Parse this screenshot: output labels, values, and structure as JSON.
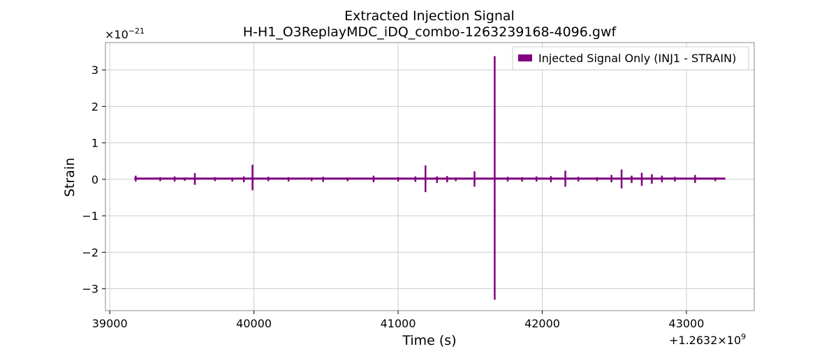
{
  "chart_data": {
    "type": "line",
    "title": "Extracted Injection Signal",
    "subtitle": "H-H1_O3ReplayMDC_iDQ_combo-1263239168-4096.gwf",
    "xlabel": "Time (s)",
    "ylabel": "Strain",
    "x_offset_text": "+1.2632×10",
    "x_offset_exponent": "9",
    "y_scale_text": "×10",
    "y_scale_exponent": "−21",
    "xlim": [
      38970,
      43470
    ],
    "ylim": [
      -3.6,
      3.75
    ],
    "x_ticks": [
      39000,
      40000,
      41000,
      42000,
      43000
    ],
    "x_tick_labels": [
      "39000",
      "40000",
      "41000",
      "42000",
      "43000"
    ],
    "y_ticks": [
      -3,
      -2,
      -1,
      0,
      1,
      2,
      3
    ],
    "y_tick_labels": [
      "−3",
      "−2",
      "−1",
      "0",
      "1",
      "2",
      "3"
    ],
    "grid": true,
    "legend": {
      "position": "top-right",
      "entries": [
        "Injected Signal Only (INJ1 - STRAIN)"
      ]
    },
    "series": [
      {
        "name": "Injected Signal Only (INJ1 - STRAIN)",
        "color": "#800080",
        "x_range": [
          39170,
          43270
        ],
        "baseline": 0.02,
        "spikes": [
          {
            "x": 39180,
            "y_max": 0.1,
            "y_min": -0.06
          },
          {
            "x": 39350,
            "y_max": 0.06,
            "y_min": -0.05
          },
          {
            "x": 39450,
            "y_max": 0.08,
            "y_min": -0.06
          },
          {
            "x": 39520,
            "y_max": 0.05,
            "y_min": -0.04
          },
          {
            "x": 39590,
            "y_max": 0.17,
            "y_min": -0.15
          },
          {
            "x": 39730,
            "y_max": 0.06,
            "y_min": -0.05
          },
          {
            "x": 39850,
            "y_max": 0.05,
            "y_min": -0.06
          },
          {
            "x": 39930,
            "y_max": 0.08,
            "y_min": -0.08
          },
          {
            "x": 39990,
            "y_max": 0.4,
            "y_min": -0.3
          },
          {
            "x": 40100,
            "y_max": 0.07,
            "y_min": -0.05
          },
          {
            "x": 40240,
            "y_max": 0.06,
            "y_min": -0.06
          },
          {
            "x": 40400,
            "y_max": 0.05,
            "y_min": -0.05
          },
          {
            "x": 40480,
            "y_max": 0.07,
            "y_min": -0.07
          },
          {
            "x": 40650,
            "y_max": 0.05,
            "y_min": -0.05
          },
          {
            "x": 40830,
            "y_max": 0.1,
            "y_min": -0.08
          },
          {
            "x": 41000,
            "y_max": 0.06,
            "y_min": -0.06
          },
          {
            "x": 41120,
            "y_max": 0.08,
            "y_min": -0.07
          },
          {
            "x": 41190,
            "y_max": 0.38,
            "y_min": -0.35
          },
          {
            "x": 41270,
            "y_max": 0.08,
            "y_min": -0.1
          },
          {
            "x": 41340,
            "y_max": 0.09,
            "y_min": -0.08
          },
          {
            "x": 41400,
            "y_max": 0.05,
            "y_min": -0.05
          },
          {
            "x": 41530,
            "y_max": 0.22,
            "y_min": -0.2
          },
          {
            "x": 41670,
            "y_max": 3.38,
            "y_min": -3.3
          },
          {
            "x": 41760,
            "y_max": 0.07,
            "y_min": -0.06
          },
          {
            "x": 41860,
            "y_max": 0.06,
            "y_min": -0.06
          },
          {
            "x": 41960,
            "y_max": 0.08,
            "y_min": -0.06
          },
          {
            "x": 42060,
            "y_max": 0.09,
            "y_min": -0.08
          },
          {
            "x": 42160,
            "y_max": 0.24,
            "y_min": -0.2
          },
          {
            "x": 42250,
            "y_max": 0.07,
            "y_min": -0.06
          },
          {
            "x": 42380,
            "y_max": 0.06,
            "y_min": -0.05
          },
          {
            "x": 42480,
            "y_max": 0.12,
            "y_min": -0.08
          },
          {
            "x": 42550,
            "y_max": 0.27,
            "y_min": -0.25
          },
          {
            "x": 42620,
            "y_max": 0.1,
            "y_min": -0.1
          },
          {
            "x": 42690,
            "y_max": 0.18,
            "y_min": -0.18
          },
          {
            "x": 42760,
            "y_max": 0.14,
            "y_min": -0.12
          },
          {
            "x": 42830,
            "y_max": 0.1,
            "y_min": -0.08
          },
          {
            "x": 42920,
            "y_max": 0.07,
            "y_min": -0.06
          },
          {
            "x": 43060,
            "y_max": 0.12,
            "y_min": -0.1
          },
          {
            "x": 43200,
            "y_max": 0.05,
            "y_min": -0.05
          }
        ]
      }
    ]
  }
}
